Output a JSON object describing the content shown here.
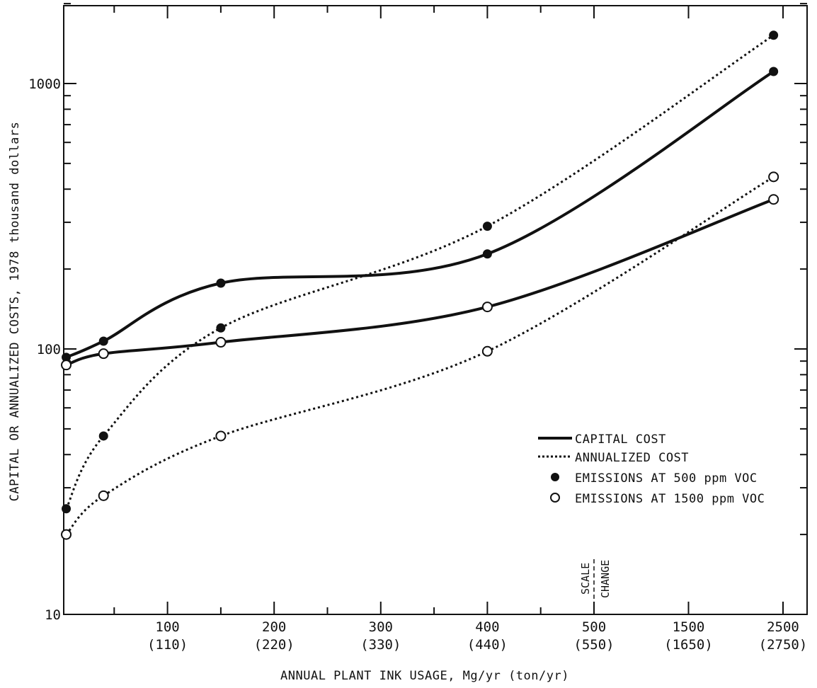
{
  "chart_data": {
    "type": "line",
    "xlabel": "ANNUAL PLANT INK USAGE, Mg/yr (ton/yr)",
    "ylabel": "CAPITAL OR ANNUALIZED COSTS, 1978 thousand dollars",
    "y_scale": "log",
    "ylim": [
      10,
      2000
    ],
    "y_ticks": [
      "10",
      "100",
      "1000"
    ],
    "x_ticks": [
      {
        "mg": "100",
        "ton": "(110)"
      },
      {
        "mg": "200",
        "ton": "(220)"
      },
      {
        "mg": "300",
        "ton": "(330)"
      },
      {
        "mg": "400",
        "ton": "(440)"
      },
      {
        "mg": "500",
        "ton": "(550)"
      },
      {
        "mg": "1500",
        "ton": "(1650)"
      },
      {
        "mg": "2500",
        "ton": "(2750)"
      }
    ],
    "scale_change": {
      "label_1": "SCALE",
      "label_2": "CHANGE",
      "at": 500
    },
    "legend": {
      "capital": "CAPITAL COST",
      "annualized": "ANNUALIZED COST",
      "emis500": "EMISSIONS AT 500 ppm VOC",
      "emis1500": "EMISSIONS AT 1500 ppm VOC"
    },
    "series": [
      {
        "key": "capital_500",
        "style": "solid",
        "marker": "filled",
        "color": "#111111",
        "x": [
          5,
          40,
          150,
          400,
          2400
        ],
        "y": [
          93,
          107,
          177,
          228,
          1110
        ]
      },
      {
        "key": "annual_500",
        "style": "dotted",
        "marker": "filled",
        "color": "#111111",
        "x": [
          5,
          40,
          150,
          400,
          2400
        ],
        "y": [
          25,
          47,
          120,
          290,
          1520
        ]
      },
      {
        "key": "capital_1500",
        "style": "solid",
        "marker": "open",
        "color": "#111111",
        "x": [
          5,
          40,
          150,
          400,
          2400
        ],
        "y": [
          87,
          96,
          106,
          144,
          366
        ]
      },
      {
        "key": "annual_1500",
        "style": "dotted",
        "marker": "open",
        "color": "#111111",
        "x": [
          5,
          40,
          150,
          400,
          2400
        ],
        "y": [
          20,
          28,
          47,
          98,
          445
        ]
      }
    ]
  }
}
